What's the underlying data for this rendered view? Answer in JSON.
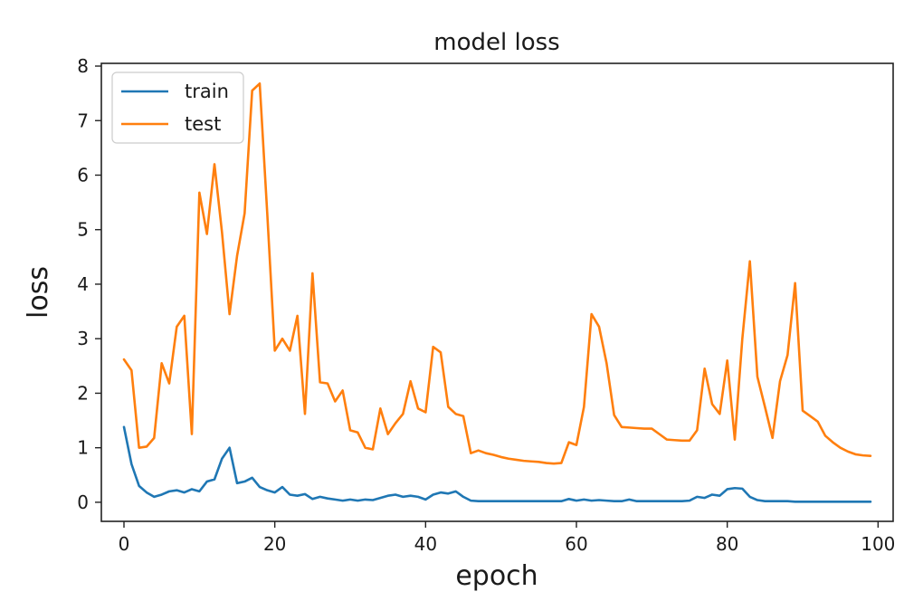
{
  "chart_data": {
    "type": "line",
    "title": "model loss",
    "xlabel": "epoch",
    "ylabel": "loss",
    "xlim": [
      -3,
      102
    ],
    "ylim": [
      -0.35,
      8.05
    ],
    "xticks": [
      0,
      20,
      40,
      60,
      80,
      100
    ],
    "yticks": [
      0,
      1,
      2,
      3,
      4,
      5,
      6,
      7,
      8
    ],
    "grid": false,
    "legend_position": "top-left",
    "x": [
      0,
      1,
      2,
      3,
      4,
      5,
      6,
      7,
      8,
      9,
      10,
      11,
      12,
      13,
      14,
      15,
      16,
      17,
      18,
      19,
      20,
      21,
      22,
      23,
      24,
      25,
      26,
      27,
      28,
      29,
      30,
      31,
      32,
      33,
      34,
      35,
      36,
      37,
      38,
      39,
      40,
      41,
      42,
      43,
      44,
      45,
      46,
      47,
      48,
      49,
      50,
      51,
      52,
      53,
      54,
      55,
      56,
      57,
      58,
      59,
      60,
      61,
      62,
      63,
      64,
      65,
      66,
      67,
      68,
      69,
      70,
      71,
      72,
      73,
      74,
      75,
      76,
      77,
      78,
      79,
      80,
      81,
      82,
      83,
      84,
      85,
      86,
      87,
      88,
      89,
      90,
      91,
      92,
      93,
      94,
      95,
      96,
      97,
      98,
      99
    ],
    "series": [
      {
        "name": "train",
        "color": "#1f77b4",
        "values": [
          1.38,
          0.7,
          0.3,
          0.18,
          0.1,
          0.14,
          0.2,
          0.22,
          0.18,
          0.24,
          0.2,
          0.38,
          0.42,
          0.8,
          1.0,
          0.35,
          0.38,
          0.45,
          0.28,
          0.22,
          0.18,
          0.28,
          0.14,
          0.12,
          0.15,
          0.06,
          0.1,
          0.07,
          0.05,
          0.03,
          0.05,
          0.03,
          0.05,
          0.04,
          0.08,
          0.12,
          0.14,
          0.1,
          0.12,
          0.1,
          0.05,
          0.14,
          0.18,
          0.16,
          0.2,
          0.1,
          0.03,
          0.02,
          0.02,
          0.02,
          0.02,
          0.02,
          0.02,
          0.02,
          0.02,
          0.02,
          0.02,
          0.02,
          0.02,
          0.06,
          0.03,
          0.05,
          0.03,
          0.04,
          0.03,
          0.02,
          0.02,
          0.05,
          0.02,
          0.02,
          0.02,
          0.02,
          0.02,
          0.02,
          0.02,
          0.03,
          0.1,
          0.08,
          0.14,
          0.12,
          0.24,
          0.26,
          0.25,
          0.1,
          0.04,
          0.02,
          0.02,
          0.02,
          0.02,
          0.01,
          0.01,
          0.01,
          0.01,
          0.01,
          0.01,
          0.01,
          0.01,
          0.01,
          0.01,
          0.01
        ]
      },
      {
        "name": "test",
        "color": "#ff7f0e",
        "values": [
          2.62,
          2.42,
          1.0,
          1.02,
          1.18,
          2.55,
          2.18,
          3.22,
          3.42,
          1.25,
          5.68,
          4.92,
          6.2,
          4.95,
          3.45,
          4.52,
          5.3,
          7.55,
          7.68,
          5.3,
          2.78,
          3.0,
          2.78,
          3.42,
          1.62,
          4.2,
          2.2,
          2.18,
          1.85,
          2.05,
          1.32,
          1.28,
          1.0,
          0.97,
          1.72,
          1.25,
          1.45,
          1.62,
          2.22,
          1.72,
          1.65,
          2.85,
          2.75,
          1.75,
          1.62,
          1.58,
          0.9,
          0.95,
          0.9,
          0.87,
          0.83,
          0.8,
          0.78,
          0.76,
          0.75,
          0.74,
          0.72,
          0.71,
          0.72,
          1.1,
          1.05,
          1.75,
          3.45,
          3.22,
          2.55,
          1.6,
          1.38,
          1.37,
          1.36,
          1.35,
          1.35,
          1.25,
          1.15,
          1.14,
          1.13,
          1.13,
          1.32,
          2.45,
          1.8,
          1.62,
          2.6,
          1.15,
          3.0,
          4.42,
          2.3,
          1.75,
          1.18,
          2.22,
          2.7,
          4.02,
          1.68,
          1.58,
          1.48,
          1.22,
          1.1,
          1.0,
          0.93,
          0.88,
          0.86,
          0.85
        ]
      }
    ]
  }
}
